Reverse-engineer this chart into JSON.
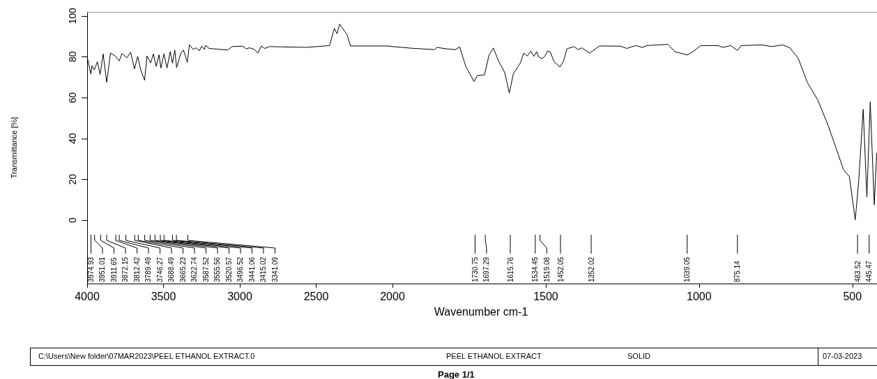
{
  "chart_data": [
    {
      "type": "line",
      "ylabel": "Transmittance [%]",
      "color": "#000000",
      "marker": "none",
      "line_style": "solid",
      "grid": false,
      "xlim": [
        4000,
        2000
      ],
      "ylim": [
        -31,
        102
      ],
      "xticks": [
        4000,
        3500,
        3000,
        2500,
        2000
      ],
      "yticks": [
        0,
        20,
        40,
        60,
        80,
        100
      ],
      "x": [
        4000,
        3976,
        3968,
        3953,
        3933,
        3915,
        3895,
        3872,
        3847,
        3816,
        3790,
        3771,
        3740,
        3715,
        3690,
        3669,
        3649,
        3624,
        3608,
        3584,
        3566,
        3548,
        3529,
        3517,
        3497,
        3477,
        3456,
        3441,
        3426,
        3414,
        3387,
        3369,
        3344,
        3330,
        3305,
        3285,
        3265,
        3250,
        3232,
        3224,
        3201,
        3080,
        3050,
        2981,
        2958,
        2936,
        2905,
        2882,
        2860,
        2837,
        2806,
        2563,
        2412,
        2381,
        2363,
        2346,
        2323,
        2298,
        2275,
        2032,
        2000
      ],
      "values": [
        80,
        71.6,
        75.7,
        73.6,
        77.6,
        71.3,
        81.4,
        67.5,
        81.8,
        80.4,
        78,
        81.6,
        79.5,
        82.2,
        74.1,
        80.2,
        73.6,
        68.5,
        80.4,
        77,
        81.4,
        75.3,
        81,
        74.5,
        81.4,
        74.5,
        82.5,
        76.8,
        83.3,
        74.7,
        81.6,
        83.3,
        77.3,
        85.9,
        83.6,
        84.4,
        82.9,
        85.2,
        83.6,
        85.6,
        84.1,
        83.3,
        85,
        85.2,
        83.9,
        84.4,
        83.6,
        81.8,
        85.2,
        84.1,
        85,
        84.6,
        85.5,
        93.9,
        91.3,
        96,
        93.5,
        90.9,
        85.3,
        85.3,
        85
      ],
      "annotations": [
        {
          "text": "3974.93",
          "x": 3974.93
        },
        {
          "text": "3951.01",
          "x": 3951.01
        },
        {
          "text": "3911.65",
          "x": 3911.65
        },
        {
          "text": "3872.15",
          "x": 3872.15
        },
        {
          "text": "3812.42",
          "x": 3812.42
        },
        {
          "text": "3789.49",
          "x": 3789.49
        },
        {
          "text": "3746.27",
          "x": 3746.27
        },
        {
          "text": "3688.49",
          "x": 3688.49
        },
        {
          "text": "3665.23",
          "x": 3665.23
        },
        {
          "text": "3622.74",
          "x": 3622.74
        },
        {
          "text": "3587.52",
          "x": 3587.52
        },
        {
          "text": "3555.56",
          "x": 3555.56
        },
        {
          "text": "3520.57",
          "x": 3520.57
        },
        {
          "text": "3496.52",
          "x": 3496.52
        },
        {
          "text": "3441.06",
          "x": 3441.06
        },
        {
          "text": "3415.02",
          "x": 3415.02
        },
        {
          "text": "3341.09",
          "x": 3341.09
        }
      ]
    },
    {
      "type": "line",
      "xlabel": "Wavenumber cm-1",
      "color": "#000000",
      "marker": "none",
      "line_style": "solid",
      "grid": false,
      "tick_labels": "x",
      "xlim": [
        2000,
        420
      ],
      "ylim": [
        -31,
        102
      ],
      "xticks": [
        1500,
        1000,
        500
      ],
      "x": [
        2000,
        1939,
        1863,
        1855,
        1825,
        1795,
        1781,
        1761,
        1734,
        1723,
        1700,
        1685,
        1671,
        1655,
        1634,
        1619,
        1606,
        1583,
        1572,
        1560,
        1549,
        1539,
        1530,
        1523,
        1513,
        1503,
        1495,
        1486,
        1473,
        1454,
        1442,
        1431,
        1408,
        1395,
        1383,
        1357,
        1325,
        1257,
        1236,
        1207,
        1185,
        1170,
        1102,
        1079,
        1039,
        1018,
        995,
        938,
        923,
        897,
        875,
        863,
        795,
        764,
        728,
        704,
        677,
        647,
        613,
        579,
        529,
        510,
        491,
        480,
        465,
        453,
        442,
        429,
        421
      ],
      "values": [
        85,
        84.2,
        83.5,
        84.6,
        83.9,
        83.5,
        84.8,
        75.3,
        67.9,
        70.8,
        71.1,
        81,
        84.3,
        78.2,
        72.3,
        62.3,
        71.6,
        77,
        81.8,
        80.4,
        82.7,
        80.2,
        82.5,
        79.9,
        79.1,
        80.2,
        82.7,
        82.5,
        77.6,
        75,
        78,
        83.9,
        85,
        83.5,
        84.4,
        81.8,
        85.3,
        85.2,
        84.1,
        85.5,
        84.6,
        85.5,
        86.1,
        82.5,
        80.9,
        82.7,
        85.5,
        85.5,
        84.6,
        85.5,
        83.1,
        85.5,
        85.8,
        85,
        85.8,
        84.4,
        79.3,
        67.4,
        58.8,
        46.3,
        24.7,
        21.3,
        0.2,
        18.4,
        54.3,
        11.3,
        58,
        7.6,
        32.9
      ],
      "annotations": [
        {
          "text": "1730.75",
          "x": 1730.75
        },
        {
          "text": "1697.29",
          "x": 1697.29
        },
        {
          "text": "1615.76",
          "x": 1615.76
        },
        {
          "text": "1534.45",
          "x": 1534.45
        },
        {
          "text": "1519.08",
          "x": 1519.08
        },
        {
          "text": "1452.05",
          "x": 1452.05
        },
        {
          "text": "1352.02",
          "x": 1352.02
        },
        {
          "text": "1039.05",
          "x": 1039.05
        },
        {
          "text": "875.14",
          "x": 875.14
        },
        {
          "text": "483.52",
          "x": 483.52
        },
        {
          "text": "445.47",
          "x": 445.47
        },
        "C:\\Users\\New folder\\07MAR2023\\PEEL ETHANOL EXTRACT.0",
        "PEEL ETHANOL EXTRACT",
        "SOLID",
        "07-03-2023",
        "Page 1/1"
      ]
    }
  ]
}
